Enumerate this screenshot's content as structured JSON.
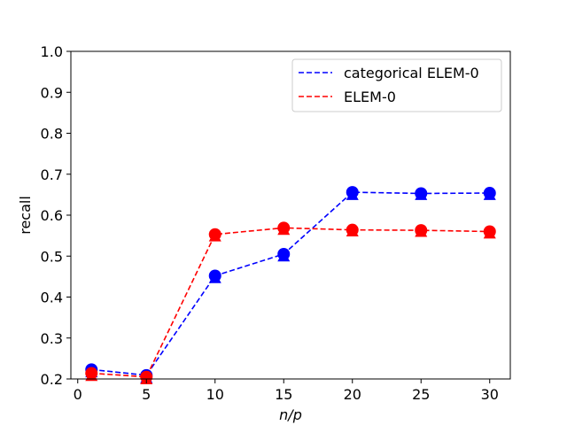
{
  "chart_data": {
    "type": "line",
    "title": "",
    "xlabel": "n/p",
    "ylabel": "recall",
    "xlim": [
      -0.5,
      31.5
    ],
    "ylim": [
      0.2,
      1.0
    ],
    "xticks": [
      0,
      5,
      10,
      15,
      20,
      25,
      30
    ],
    "xtick_labels": [
      "0",
      "5",
      "10",
      "15",
      "20",
      "25",
      "30"
    ],
    "yticks": [
      0.2,
      0.3,
      0.4,
      0.5,
      0.6,
      0.7,
      0.8,
      0.9,
      1.0
    ],
    "ytick_labels": [
      "0.2",
      "0.3",
      "0.4",
      "0.5",
      "0.6",
      "0.7",
      "0.8",
      "0.9",
      "1.0"
    ],
    "grid": false,
    "legend_position": "top-right",
    "x": [
      1,
      5,
      10,
      15,
      20,
      25,
      30
    ],
    "series": [
      {
        "name": "categorical ELEM-0",
        "color": "#0000ff",
        "line_style": "dashed",
        "values": [
          0.223,
          0.209,
          0.452,
          0.505,
          0.656,
          0.653,
          0.654
        ],
        "triangle_values": [
          0.217,
          0.203,
          0.447,
          0.5,
          0.65,
          0.65,
          0.65
        ]
      },
      {
        "name": "ELEM-0",
        "color": "#ff0000",
        "line_style": "dashed",
        "values": [
          0.214,
          0.205,
          0.553,
          0.569,
          0.564,
          0.563,
          0.56
        ],
        "triangle_values": [
          0.208,
          0.2,
          0.549,
          0.565,
          0.561,
          0.56,
          0.556
        ]
      }
    ]
  }
}
